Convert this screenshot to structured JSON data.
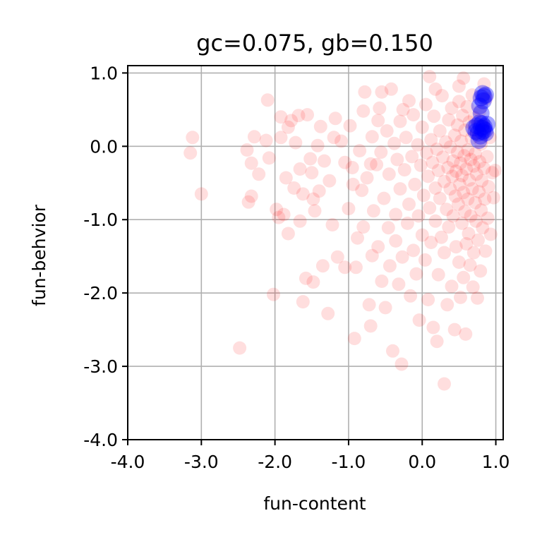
{
  "chart_data": {
    "type": "scatter",
    "title": "gc=0.075, gb=0.150",
    "xlabel": "fun-content",
    "ylabel": "fun-behvior",
    "xlim": [
      -4.0,
      1.1
    ],
    "ylim": [
      -4.0,
      1.1
    ],
    "xticks": [
      -4.0,
      -3.0,
      -2.0,
      -1.0,
      0.0,
      1.0
    ],
    "yticks": [
      -4.0,
      -3.0,
      -2.0,
      -1.0,
      0.0,
      1.0
    ],
    "xtick_labels": [
      "-4.0",
      "-3.0",
      "-2.0",
      "-1.0",
      "0.0",
      "1.0"
    ],
    "ytick_labels": [
      "-4.0",
      "-3.0",
      "-2.0",
      "-1.0",
      "0.0",
      "1.0"
    ],
    "grid": true,
    "series": [
      {
        "color": "#ff0000",
        "alpha": 0.13,
        "points": [
          [
            -3.15,
            -0.09
          ],
          [
            -3.0,
            -0.65
          ],
          [
            -3.12,
            0.12
          ],
          [
            -2.48,
            -2.75
          ],
          [
            -2.38,
            -0.05
          ],
          [
            -2.36,
            -0.76
          ],
          [
            -2.32,
            -0.68
          ],
          [
            -2.32,
            -0.23
          ],
          [
            -2.28,
            0.13
          ],
          [
            -2.22,
            -0.38
          ],
          [
            -2.12,
            0.08
          ],
          [
            -2.08,
            -0.16
          ],
          [
            -2.1,
            0.63
          ],
          [
            -2.02,
            -2.02
          ],
          [
            -1.98,
            -0.86
          ],
          [
            -1.92,
            0.4
          ],
          [
            -1.92,
            0.12
          ],
          [
            -1.88,
            -0.93
          ],
          [
            -1.85,
            -0.43
          ],
          [
            -1.82,
            0.26
          ],
          [
            -1.82,
            -1.19
          ],
          [
            -1.78,
            0.35
          ],
          [
            -1.74,
            -0.57
          ],
          [
            -1.72,
            0.05
          ],
          [
            -1.68,
            0.42
          ],
          [
            -1.66,
            -1.02
          ],
          [
            -1.62,
            -2.12
          ],
          [
            -1.62,
            -0.65
          ],
          [
            -1.58,
            -1.8
          ],
          [
            -1.56,
            0.43
          ],
          [
            -1.52,
            -0.17
          ],
          [
            -1.5,
            -0.36
          ],
          [
            -1.48,
            -0.72
          ],
          [
            -1.46,
            -0.88
          ],
          [
            -1.42,
            0.01
          ],
          [
            -1.4,
            -0.61
          ],
          [
            -1.38,
            0.27
          ],
          [
            -1.35,
            -1.63
          ],
          [
            -1.33,
            -0.2
          ],
          [
            -1.28,
            -2.28
          ],
          [
            -1.26,
            -0.47
          ],
          [
            -1.22,
            -1.07
          ],
          [
            -1.18,
            0.38
          ],
          [
            -1.15,
            -1.51
          ],
          [
            -1.1,
            0.07
          ],
          [
            -1.05,
            -0.22
          ],
          [
            -1.05,
            -1.65
          ],
          [
            -1.0,
            -0.85
          ],
          [
            -0.98,
            0.28
          ],
          [
            -0.95,
            -0.29
          ],
          [
            -0.92,
            -2.62
          ],
          [
            -0.9,
            -1.65
          ],
          [
            -0.88,
            -1.25
          ],
          [
            -0.85,
            -0.06
          ],
          [
            -0.82,
            -0.6
          ],
          [
            -0.8,
            0.48
          ],
          [
            -0.8,
            -1.1
          ],
          [
            -0.78,
            0.74
          ],
          [
            -0.75,
            -0.43
          ],
          [
            -0.72,
            -2.16
          ],
          [
            -0.7,
            -2.45
          ],
          [
            -0.68,
            -1.49
          ],
          [
            -0.68,
            0.13
          ],
          [
            -0.66,
            -0.88
          ],
          [
            -0.62,
            -0.25
          ],
          [
            -0.6,
            -1.37
          ],
          [
            -0.58,
            0.52
          ],
          [
            -0.56,
            -0.08
          ],
          [
            -0.55,
            -1.84
          ],
          [
            -0.52,
            -0.71
          ],
          [
            -0.5,
            -2.2
          ],
          [
            -0.48,
            0.21
          ],
          [
            -0.46,
            -1.11
          ],
          [
            -0.45,
            -0.38
          ],
          [
            -0.44,
            -1.63
          ],
          [
            -0.42,
            0.78
          ],
          [
            -0.4,
            -2.79
          ],
          [
            -0.38,
            0.04
          ],
          [
            -0.36,
            -0.93
          ],
          [
            -0.36,
            -1.29
          ],
          [
            -0.34,
            -0.18
          ],
          [
            -0.32,
            -1.88
          ],
          [
            -0.3,
            0.34
          ],
          [
            -0.3,
            -0.58
          ],
          [
            -0.28,
            -2.97
          ],
          [
            -0.27,
            -1.51
          ],
          [
            -0.24,
            -0.32
          ],
          [
            -0.22,
            0.12
          ],
          [
            -0.2,
            -1.05
          ],
          [
            -0.18,
            -0.79
          ],
          [
            -0.18,
            0.62
          ],
          [
            -0.16,
            -2.04
          ],
          [
            -0.14,
            -0.14
          ],
          [
            -0.12,
            -1.42
          ],
          [
            -0.12,
            0.43
          ],
          [
            -0.1,
            -0.52
          ],
          [
            -0.08,
            -1.74
          ],
          [
            -0.06,
            0.02
          ],
          [
            -0.05,
            -0.95
          ],
          [
            -0.04,
            -2.37
          ],
          [
            -0.02,
            -0.26
          ],
          [
            0.0,
            0.26
          ],
          [
            0.0,
            -1.21
          ],
          [
            0.02,
            -0.67
          ],
          [
            0.04,
            -1.55
          ],
          [
            0.05,
            0.57
          ],
          [
            0.06,
            -0.09
          ],
          [
            0.08,
            -0.41
          ],
          [
            0.08,
            -2.09
          ],
          [
            0.1,
            -0.84
          ],
          [
            0.12,
            0.09
          ],
          [
            0.12,
            -1.31
          ],
          [
            0.14,
            -0.22
          ],
          [
            0.15,
            -2.47
          ],
          [
            0.16,
            0.41
          ],
          [
            0.18,
            -0.57
          ],
          [
            0.18,
            -1.02
          ],
          [
            0.2,
            -0.04
          ],
          [
            0.2,
            -2.66
          ],
          [
            0.22,
            -1.75
          ],
          [
            0.22,
            -0.33
          ],
          [
            0.24,
            0.21
          ],
          [
            0.24,
            -0.71
          ],
          [
            0.26,
            -1.24
          ],
          [
            0.27,
            0.69
          ],
          [
            0.28,
            -0.15
          ],
          [
            0.3,
            -0.48
          ],
          [
            0.3,
            -1.45
          ],
          [
            0.3,
            -3.24
          ],
          [
            0.32,
            0.06
          ],
          [
            0.33,
            -0.86
          ],
          [
            0.34,
            -2.16
          ],
          [
            0.35,
            -0.29
          ],
          [
            0.36,
            0.36
          ],
          [
            0.36,
            -1.1
          ],
          [
            0.38,
            -0.58
          ],
          [
            0.38,
            -0.01
          ],
          [
            0.4,
            -1.91
          ],
          [
            0.4,
            0.52
          ],
          [
            0.41,
            -0.41
          ],
          [
            0.42,
            -0.2
          ],
          [
            0.42,
            -0.95
          ],
          [
            0.44,
            0.15
          ],
          [
            0.44,
            -2.5
          ],
          [
            0.45,
            -0.68
          ],
          [
            0.46,
            -0.34
          ],
          [
            0.46,
            -1.37
          ],
          [
            0.48,
            0.29
          ],
          [
            0.48,
            -0.08
          ],
          [
            0.49,
            -0.79
          ],
          [
            0.5,
            -1.58
          ],
          [
            0.5,
            0.61
          ],
          [
            0.51,
            -0.52
          ],
          [
            0.52,
            -0.23
          ],
          [
            0.52,
            -2.06
          ],
          [
            0.53,
            0.07
          ],
          [
            0.54,
            -1.05
          ],
          [
            0.54,
            -0.4
          ],
          [
            0.55,
            0.42
          ],
          [
            0.56,
            -0.63
          ],
          [
            0.56,
            -1.79
          ],
          [
            0.57,
            -0.13
          ],
          [
            0.58,
            0.22
          ],
          [
            0.58,
            -0.89
          ],
          [
            0.59,
            -2.56
          ],
          [
            0.6,
            -0.31
          ],
          [
            0.6,
            -1.33
          ],
          [
            0.61,
            0.54
          ],
          [
            0.62,
            -0.05
          ],
          [
            0.62,
            -0.72
          ],
          [
            0.63,
            -1.19
          ],
          [
            0.64,
            0.33
          ],
          [
            0.64,
            -0.46
          ],
          [
            0.65,
            -1.62
          ],
          [
            0.66,
            -0.18
          ],
          [
            0.66,
            -0.95
          ],
          [
            0.67,
            0.11
          ],
          [
            0.68,
            0.7
          ],
          [
            0.68,
            -0.58
          ],
          [
            0.69,
            -1.92
          ],
          [
            0.7,
            -0.27
          ],
          [
            0.7,
            -1.45
          ],
          [
            0.71,
            0.39
          ],
          [
            0.72,
            -0.77
          ],
          [
            0.72,
            -0.1
          ],
          [
            0.73,
            -1.02
          ],
          [
            0.74,
            0.18
          ],
          [
            0.74,
            -0.38
          ],
          [
            0.75,
            -2.07
          ],
          [
            0.76,
            -1.28
          ],
          [
            0.77,
            -0.62
          ],
          [
            0.78,
            0.48
          ],
          [
            0.78,
            -0.21
          ],
          [
            0.79,
            -1.7
          ],
          [
            0.8,
            -0.87
          ],
          [
            0.8,
            0.03
          ],
          [
            0.81,
            -0.47
          ],
          [
            0.82,
            -1.11
          ],
          [
            0.83,
            0.28
          ],
          [
            0.84,
            -0.3
          ],
          [
            0.85,
            -0.72
          ],
          [
            0.86,
            -1.43
          ],
          [
            0.87,
            0.65
          ],
          [
            0.88,
            -0.14
          ],
          [
            0.89,
            -0.98
          ],
          [
            0.9,
            -0.55
          ],
          [
            0.92,
            0.12
          ],
          [
            0.93,
            -1.2
          ],
          [
            0.95,
            -0.36
          ],
          [
            0.97,
            -0.7
          ],
          [
            0.99,
            -0.33
          ],
          [
            0.84,
            0.85
          ],
          [
            0.56,
            0.93
          ],
          [
            0.1,
            0.95
          ],
          [
            -0.55,
            0.74
          ],
          [
            -1.48,
            -1.85
          ],
          [
            -1.95,
            -0.97
          ],
          [
            -1.66,
            -0.31
          ],
          [
            -0.94,
            -0.52
          ],
          [
            -0.26,
            0.5
          ],
          [
            0.18,
            0.78
          ],
          [
            -0.6,
            0.35
          ],
          [
            0.5,
            0.82
          ],
          [
            -1.2,
            0.12
          ],
          [
            -0.7,
            -0.24
          ]
        ]
      },
      {
        "color": "#0000ff",
        "alpha": 0.35,
        "points": [
          [
            0.82,
            0.72
          ],
          [
            0.84,
            0.68
          ],
          [
            0.8,
            0.66
          ],
          [
            0.86,
            0.7
          ],
          [
            0.83,
            0.62
          ],
          [
            0.78,
            0.32
          ],
          [
            0.8,
            0.25
          ],
          [
            0.84,
            0.27
          ],
          [
            0.76,
            0.18
          ],
          [
            0.82,
            0.2
          ],
          [
            0.88,
            0.3
          ],
          [
            0.74,
            0.28
          ],
          [
            0.79,
            0.14
          ],
          [
            0.85,
            0.22
          ],
          [
            0.7,
            0.25
          ],
          [
            0.77,
            0.08
          ],
          [
            0.86,
            0.18
          ],
          [
            0.81,
            0.31
          ],
          [
            0.73,
            0.2
          ],
          [
            0.83,
            0.24
          ],
          [
            0.8,
            0.45
          ],
          [
            0.78,
            0.55
          ]
        ]
      }
    ]
  }
}
